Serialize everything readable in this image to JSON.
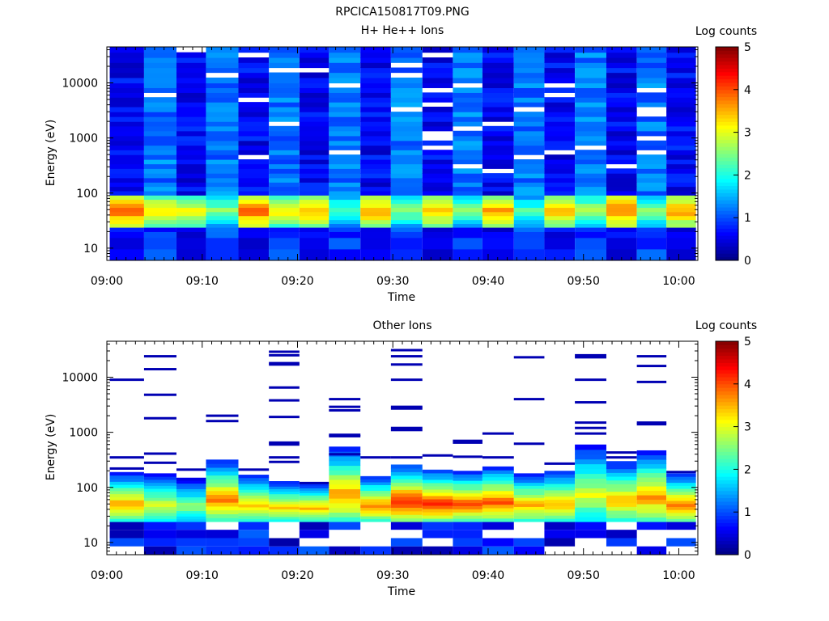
{
  "figure_title": "RPCICA150817T09.PNG",
  "colormap": [
    "#000080",
    "#0000ff",
    "#0080ff",
    "#00ffff",
    "#80ff80",
    "#ffff00",
    "#ff8000",
    "#ff0000",
    "#800000"
  ],
  "chart_data": [
    {
      "type": "heatmap",
      "title": "H+ He++ Ions",
      "xlabel": "Time",
      "ylabel": "Energy (eV)",
      "x_ticks": [
        "09:00",
        "09:10",
        "09:20",
        "09:30",
        "09:40",
        "09:50",
        "10:00"
      ],
      "x_range_min": [
        0,
        62
      ],
      "y_ticks": [
        "10",
        "100",
        "1000",
        "10000"
      ],
      "y_scale": "log",
      "y_range_ev": [
        6,
        45000
      ],
      "colorbar": {
        "label": "Log counts",
        "ticks": [
          "0",
          "1",
          "2",
          "3",
          "4",
          "5"
        ],
        "range": [
          0,
          5
        ]
      },
      "energy_edges_ev": [
        6,
        9.7,
        15.6,
        20,
        24,
        28,
        33,
        39,
        46,
        55,
        65,
        77,
        92,
        110,
        132,
        158,
        190,
        230,
        280,
        340,
        410,
        500,
        610,
        740,
        900,
        1100,
        1350,
        1650,
        2000,
        2450,
        3000,
        3700,
        4500,
        5500,
        6700,
        8200,
        10000,
        12500,
        15500,
        19000,
        23500,
        29000,
        36000,
        45000
      ],
      "time_start_min": [
        0.3,
        3.9,
        7.3,
        10.4,
        13.8,
        17,
        20.2,
        23.3,
        26.6,
        29.8,
        33.1,
        36.3,
        39.4,
        42.7,
        45.9,
        49.1,
        52.4,
        55.6,
        58.7
      ],
      "time_end_min": [
        3.9,
        7.3,
        10.4,
        13.8,
        17,
        20.2,
        23.3,
        26.6,
        29.8,
        33.1,
        36.3,
        39.4,
        42.7,
        45.9,
        49.1,
        52.4,
        55.6,
        58.7,
        61.8
      ],
      "sweep_style": [
        "dark",
        "light",
        "dark",
        "light",
        "dark",
        "light",
        "dark",
        "light",
        "dark",
        "light",
        "dark",
        "light",
        "dark",
        "light",
        "dark",
        "light",
        "dark",
        "light",
        "dark"
      ],
      "ion_peak_log": [
        3.9,
        3.3,
        3.1,
        2.6,
        3.9,
        3.3,
        3.5,
        2.4,
        3.6,
        2.6,
        3.5,
        2.6,
        3.6,
        2.4,
        3.5,
        2.8,
        3.8,
        2.6,
        3.6
      ],
      "ion_peak_ev": 48
    },
    {
      "type": "heatmap",
      "title": "Other Ions",
      "xlabel": "Time",
      "ylabel": "Energy (eV)",
      "x_ticks": [
        "09:00",
        "09:10",
        "09:20",
        "09:30",
        "09:40",
        "09:50",
        "10:00"
      ],
      "x_range_min": [
        0,
        62
      ],
      "y_ticks": [
        "10",
        "100",
        "1000",
        "10000"
      ],
      "y_scale": "log",
      "y_range_ev": [
        6,
        45000
      ],
      "colorbar": {
        "label": "Log counts",
        "ticks": [
          "0",
          "1",
          "2",
          "3",
          "4",
          "5"
        ],
        "range": [
          0,
          5
        ]
      },
      "time_start_min": [
        0.3,
        3.9,
        7.3,
        10.4,
        13.8,
        17,
        20.2,
        23.3,
        26.6,
        29.8,
        33.1,
        36.3,
        39.4,
        42.7,
        45.9,
        49.1,
        52.4,
        55.6,
        58.7
      ],
      "time_end_min": [
        3.9,
        7.3,
        10.4,
        13.8,
        17,
        20.2,
        23.3,
        26.6,
        29.8,
        33.1,
        36.3,
        39.4,
        42.7,
        45.9,
        49.1,
        52.4,
        55.6,
        58.7,
        61.8
      ],
      "band_low_ev": 24,
      "band_top_ev": [
        190,
        180,
        150,
        320,
        170,
        130,
        120,
        550,
        160,
        260,
        210,
        200,
        240,
        180,
        200,
        600,
        300,
        470,
        180
      ],
      "band_peak_log": [
        3.6,
        3.0,
        2.6,
        3.8,
        3.4,
        3.4,
        3.5,
        3.7,
        3.8,
        4.3,
        4.2,
        4.0,
        4.0,
        3.6,
        3.5,
        3.0,
        3.5,
        3.7,
        3.9
      ],
      "sparse_lines_ev": [
        [
          9000,
          350,
          220
        ],
        [
          24000,
          14000,
          4800,
          1800,
          410,
          280
        ],
        [
          210
        ],
        [
          2000,
          1600
        ],
        [
          210
        ],
        [
          29000,
          25000,
          18000,
          17000,
          6500,
          3800,
          1900,
          650,
          600,
          350,
          290
        ],
        [
          120
        ],
        [
          4000,
          2900,
          2500,
          900,
          850,
          400
        ],
        [
          350
        ],
        [
          31000,
          24000,
          17000,
          9000,
          2900,
          2700,
          1200,
          1100,
          350
        ],
        [
          380
        ],
        [
          700,
          650,
          360
        ],
        [
          950,
          350
        ],
        [
          23000,
          4000,
          620
        ],
        [
          270
        ],
        [
          25000,
          23000,
          9000,
          3500,
          1500,
          1200,
          950
        ],
        [
          430,
          350
        ],
        [
          24000,
          16000,
          8200,
          1500,
          1400
        ],
        [
          190
        ]
      ]
    }
  ]
}
